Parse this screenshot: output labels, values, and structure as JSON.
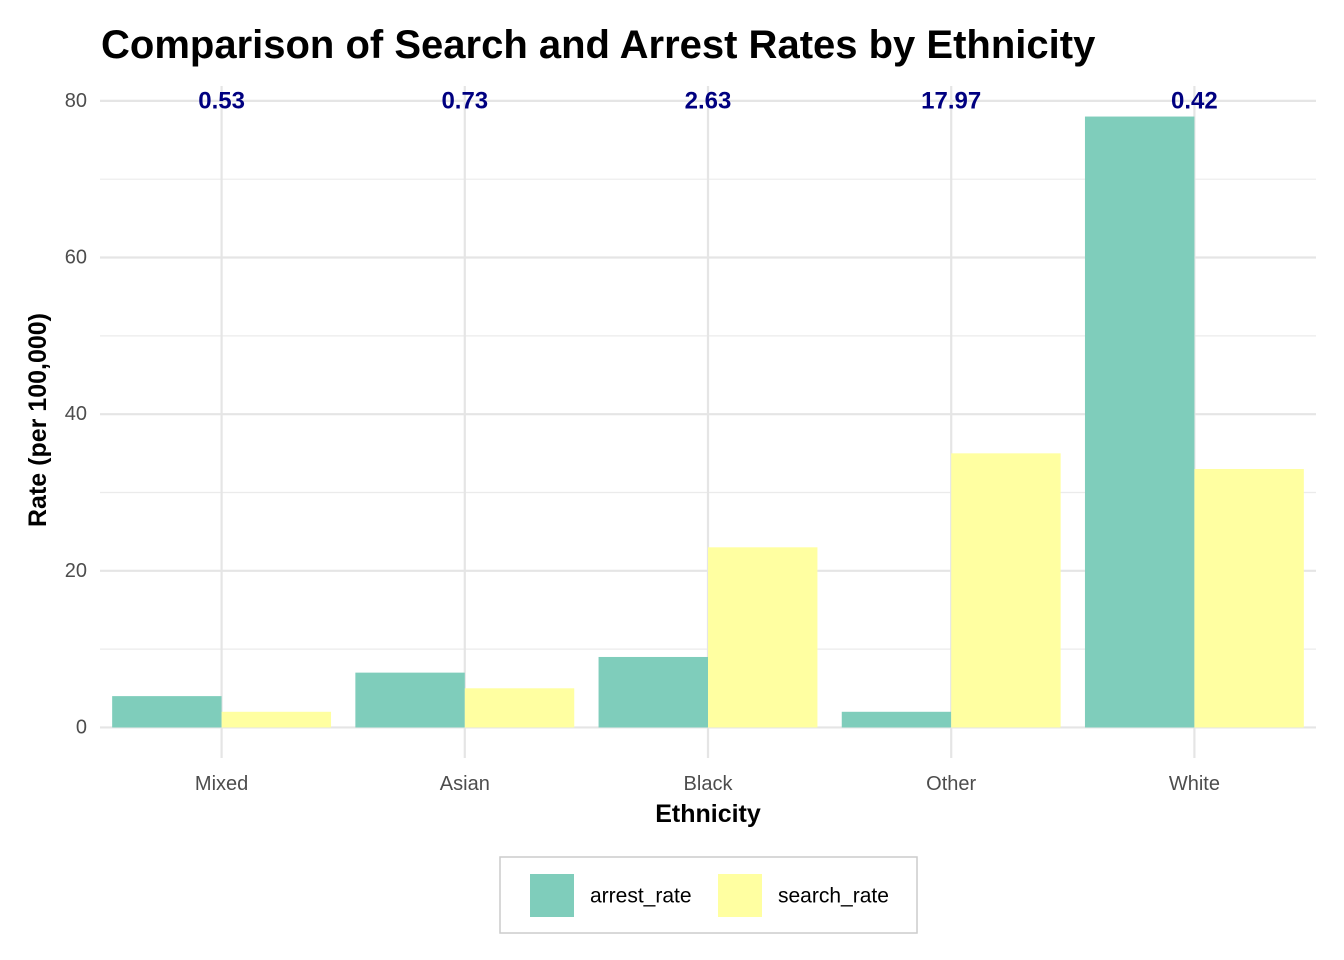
{
  "chart_data": {
    "type": "bar",
    "title": "Comparison of Search and Arrest Rates by Ethnicity",
    "xlabel": "Ethnicity",
    "ylabel": "Rate (per 100,000)",
    "categories": [
      "Mixed",
      "Asian",
      "Black",
      "Other",
      "White"
    ],
    "series": [
      {
        "name": "arrest_rate",
        "color": "#7fcdbb",
        "values": [
          4,
          7,
          9,
          2,
          78
        ]
      },
      {
        "name": "search_rate",
        "color": "#ffffa1",
        "values": [
          2,
          5,
          23,
          35,
          33
        ]
      }
    ],
    "annotations": {
      "labels": [
        "0.53",
        "0.73",
        "2.63",
        "17.97",
        "0.42"
      ],
      "y": 80,
      "color": "#000080"
    },
    "ylim": [
      -3.9,
      81.9
    ],
    "yticks": [
      0,
      20,
      40,
      60,
      80
    ],
    "grid": true,
    "legend_position": "bottom"
  }
}
